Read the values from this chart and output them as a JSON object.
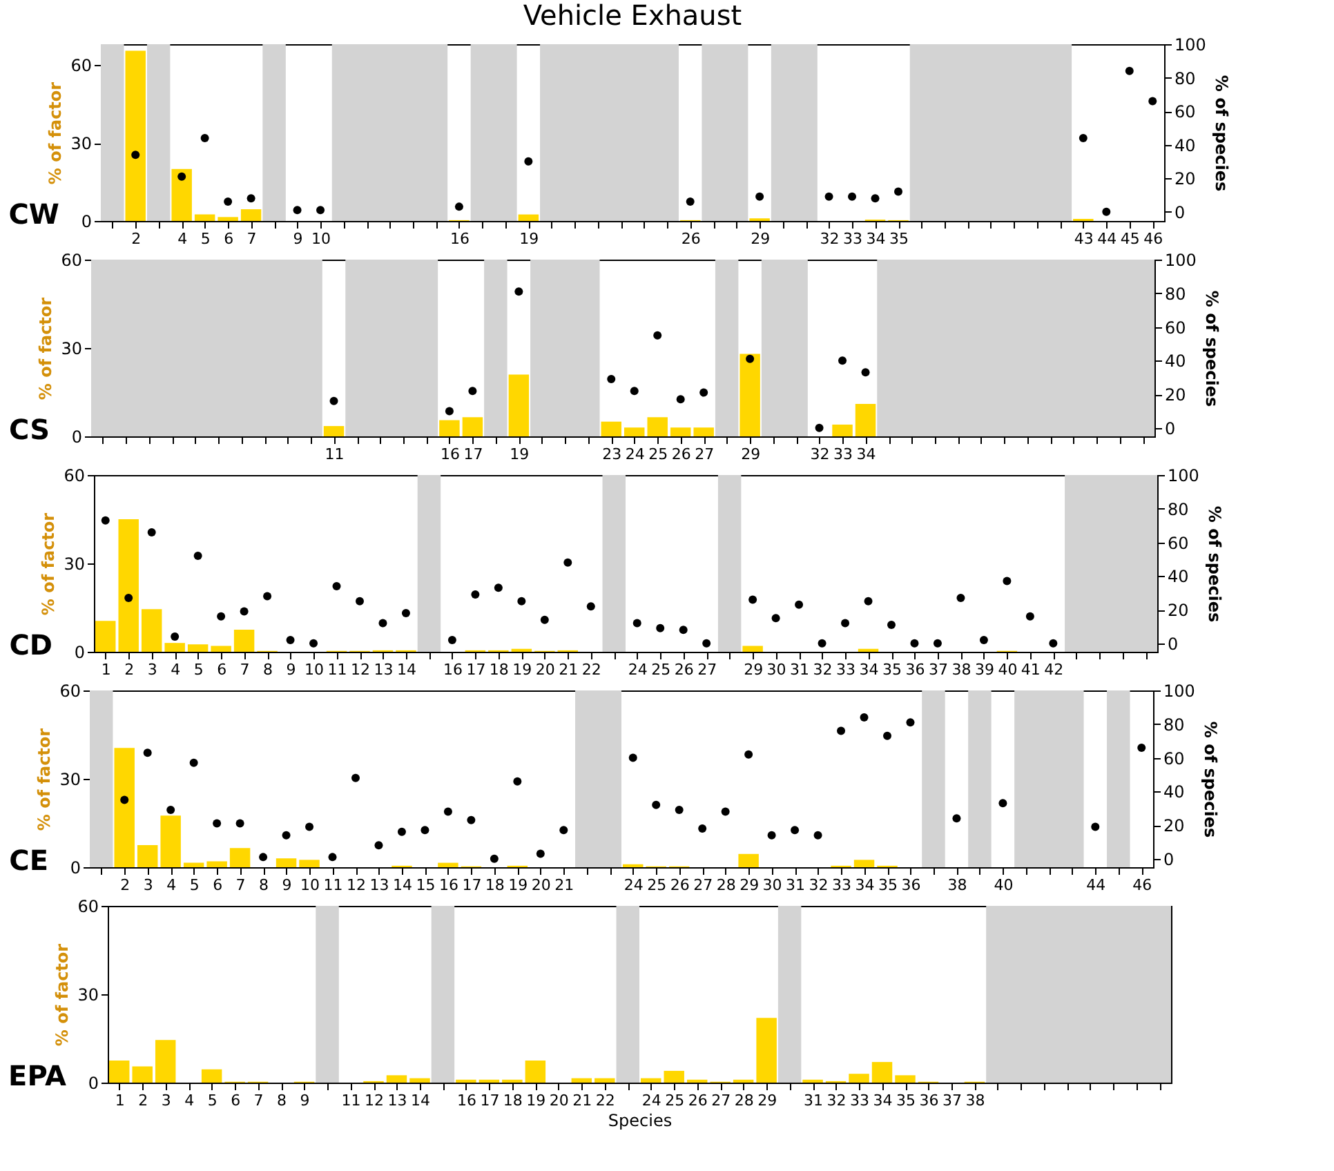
{
  "chart_data": [
    {
      "type": "bar",
      "title": "Vehicle Exhaust",
      "ylabel": "% of factor",
      "y2label": "% of species",
      "annotations": [
        "CW"
      ],
      "marker": "circle",
      "xlim": [
        0.5,
        46.5
      ],
      "ylim": [
        0,
        68
      ],
      "yticks": [
        0,
        30,
        60
      ],
      "y2lim": [
        -5.5,
        100
      ],
      "y2ticks": [
        0,
        20,
        40,
        60,
        80,
        100
      ],
      "xticks": [
        {
          "value": 1,
          "label": null
        },
        2,
        {
          "value": 3,
          "label": null
        },
        4,
        5,
        6,
        7,
        {
          "value": 8,
          "label": null
        },
        9,
        10,
        {
          "value": 11,
          "label": null
        },
        {
          "value": 12,
          "label": null
        },
        {
          "value": 13,
          "label": null
        },
        {
          "value": 14,
          "label": null
        },
        {
          "value": 15,
          "label": null
        },
        16,
        {
          "value": 17,
          "label": null
        },
        {
          "value": 18,
          "label": null
        },
        19,
        {
          "value": 20,
          "label": null
        },
        {
          "value": 21,
          "label": null
        },
        {
          "value": 22,
          "label": null
        },
        {
          "value": 23,
          "label": null
        },
        {
          "value": 24,
          "label": null
        },
        {
          "value": 25,
          "label": null
        },
        26,
        {
          "value": 27,
          "label": null
        },
        {
          "value": 28,
          "label": null
        },
        29,
        {
          "value": 30,
          "label": null
        },
        {
          "value": 31,
          "label": null
        },
        32,
        33,
        34,
        35,
        {
          "value": 36,
          "label": null
        },
        {
          "value": 37,
          "label": null
        },
        {
          "value": 38,
          "label": null
        },
        {
          "value": 39,
          "label": null
        },
        {
          "value": 40,
          "label": null
        },
        {
          "value": 41,
          "label": null
        },
        {
          "value": 42,
          "label": null
        },
        43,
        44,
        45,
        46
      ],
      "bands": [
        {
          "axis": "x",
          "from": 0.5,
          "to": 1.5,
          "color": "#d3d3d3"
        },
        {
          "axis": "x",
          "from": 2.5,
          "to": 3.5,
          "color": "#d3d3d3"
        },
        {
          "axis": "x",
          "from": 7.5,
          "to": 8.5,
          "color": "#d3d3d3"
        },
        {
          "axis": "x",
          "from": 10.5,
          "to": 15.5,
          "color": "#d3d3d3"
        },
        {
          "axis": "x",
          "from": 16.5,
          "to": 18.5,
          "color": "#d3d3d3"
        },
        {
          "axis": "x",
          "from": 19.5,
          "to": 25.5,
          "color": "#d3d3d3"
        },
        {
          "axis": "x",
          "from": 26.5,
          "to": 28.5,
          "color": "#d3d3d3"
        },
        {
          "axis": "x",
          "from": 29.5,
          "to": 31.5,
          "color": "#d3d3d3"
        },
        {
          "axis": "x",
          "from": 35.5,
          "to": 42.5,
          "color": "#d3d3d3"
        }
      ],
      "series": [
        {
          "type": "bar",
          "color": "#ffd700",
          "x": [
            2,
            4,
            5,
            6,
            7,
            9,
            10,
            16,
            19,
            26,
            29,
            32,
            33,
            34,
            35,
            43,
            44,
            45,
            46
          ],
          "values": [
            65.5,
            20,
            2.5,
            1.5,
            4.5,
            0,
            0,
            0.3,
            2.5,
            0.3,
            1,
            0,
            0,
            0.5,
            0.3,
            0.8,
            0,
            0,
            0
          ]
        },
        {
          "type": "scatter",
          "axis": "y2",
          "color": "#000000",
          "x": [
            2,
            4,
            5,
            6,
            7,
            9,
            10,
            16,
            19,
            26,
            29,
            32,
            33,
            34,
            35,
            43,
            44,
            45,
            46
          ],
          "values": [
            34,
            21,
            44,
            6,
            8,
            1,
            1,
            3,
            30,
            6,
            9,
            9,
            9,
            8,
            12,
            44,
            0,
            84,
            66
          ]
        }
      ]
    },
    {
      "type": "bar",
      "ylabel": "% of factor",
      "y2label": "% of species",
      "annotations": [
        "CS"
      ],
      "marker": "circle",
      "xlim": [
        0.5,
        46.5
      ],
      "ylim": [
        0,
        60
      ],
      "yticks": [
        0,
        30,
        60
      ],
      "y2lim": [
        -5,
        100
      ],
      "y2ticks": [
        0,
        20,
        40,
        60,
        80,
        100
      ],
      "xticks": [
        {
          "value": 1,
          "label": null
        },
        {
          "value": 2,
          "label": null
        },
        {
          "value": 3,
          "label": null
        },
        {
          "value": 4,
          "label": null
        },
        {
          "value": 5,
          "label": null
        },
        {
          "value": 6,
          "label": null
        },
        {
          "value": 7,
          "label": null
        },
        {
          "value": 8,
          "label": null
        },
        {
          "value": 9,
          "label": null
        },
        {
          "value": 10,
          "label": null
        },
        11,
        {
          "value": 12,
          "label": null
        },
        {
          "value": 13,
          "label": null
        },
        {
          "value": 14,
          "label": null
        },
        {
          "value": 15,
          "label": null
        },
        16,
        17,
        {
          "value": 18,
          "label": null
        },
        19,
        {
          "value": 20,
          "label": null
        },
        {
          "value": 21,
          "label": null
        },
        {
          "value": 22,
          "label": null
        },
        23,
        24,
        25,
        26,
        27,
        {
          "value": 28,
          "label": null
        },
        29,
        {
          "value": 30,
          "label": null
        },
        {
          "value": 31,
          "label": null
        },
        32,
        33,
        34,
        {
          "value": 35,
          "label": null
        },
        {
          "value": 36,
          "label": null
        },
        {
          "value": 37,
          "label": null
        },
        {
          "value": 38,
          "label": null
        },
        {
          "value": 39,
          "label": null
        },
        {
          "value": 40,
          "label": null
        },
        {
          "value": 41,
          "label": null
        },
        {
          "value": 42,
          "label": null
        },
        {
          "value": 43,
          "label": null
        },
        {
          "value": 44,
          "label": null
        },
        {
          "value": 45,
          "label": null
        },
        {
          "value": 46,
          "label": null
        }
      ],
      "bands": [
        {
          "axis": "x",
          "from": 0.5,
          "to": 10.5,
          "color": "#d3d3d3"
        },
        {
          "axis": "x",
          "from": 11.5,
          "to": 15.5,
          "color": "#d3d3d3"
        },
        {
          "axis": "x",
          "from": 17.5,
          "to": 18.5,
          "color": "#d3d3d3"
        },
        {
          "axis": "x",
          "from": 19.5,
          "to": 22.5,
          "color": "#d3d3d3"
        },
        {
          "axis": "x",
          "from": 27.5,
          "to": 28.5,
          "color": "#d3d3d3"
        },
        {
          "axis": "x",
          "from": 29.5,
          "to": 31.5,
          "color": "#d3d3d3"
        },
        {
          "axis": "x",
          "from": 34.5,
          "to": 46.5,
          "color": "#d3d3d3"
        }
      ],
      "series": [
        {
          "type": "bar",
          "color": "#ffd700",
          "x": [
            11,
            16,
            17,
            19,
            23,
            24,
            25,
            26,
            27,
            29,
            32,
            33,
            34
          ],
          "values": [
            3.5,
            5.5,
            6.5,
            21,
            5,
            3,
            6.5,
            3,
            3,
            28,
            0,
            4,
            11
          ]
        },
        {
          "type": "scatter",
          "axis": "y2",
          "color": "#000000",
          "x": [
            11,
            16,
            17,
            19,
            23,
            24,
            25,
            26,
            27,
            29,
            32,
            33,
            34
          ],
          "values": [
            16,
            10,
            22,
            81,
            29,
            22,
            55,
            17,
            21,
            41,
            0,
            40,
            33
          ]
        }
      ]
    },
    {
      "type": "bar",
      "ylabel": "% of factor",
      "y2label": "% of species",
      "annotations": [
        "CD"
      ],
      "marker": "circle",
      "xlim": [
        0.5,
        46.5
      ],
      "ylim": [
        0,
        60
      ],
      "yticks": [
        0,
        30,
        60
      ],
      "y2lim": [
        -5,
        100
      ],
      "y2ticks": [
        0,
        20,
        40,
        60,
        80,
        100
      ],
      "xticks": [
        1,
        2,
        3,
        4,
        5,
        6,
        7,
        8,
        9,
        10,
        11,
        12,
        13,
        14,
        {
          "value": 15,
          "label": null
        },
        16,
        17,
        18,
        19,
        20,
        21,
        22,
        {
          "value": 23,
          "label": null
        },
        24,
        25,
        26,
        27,
        {
          "value": 28,
          "label": null
        },
        29,
        30,
        31,
        32,
        33,
        34,
        35,
        36,
        37,
        38,
        39,
        40,
        41,
        42,
        {
          "value": 43,
          "label": null
        },
        {
          "value": 44,
          "label": null
        },
        {
          "value": 45,
          "label": null
        },
        {
          "value": 46,
          "label": null
        }
      ],
      "bands": [
        {
          "axis": "x",
          "from": 14.5,
          "to": 15.5,
          "color": "#d3d3d3"
        },
        {
          "axis": "x",
          "from": 22.5,
          "to": 23.5,
          "color": "#d3d3d3"
        },
        {
          "axis": "x",
          "from": 27.5,
          "to": 28.5,
          "color": "#d3d3d3"
        },
        {
          "axis": "x",
          "from": 42.5,
          "to": 46.5,
          "color": "#d3d3d3"
        }
      ],
      "series": [
        {
          "type": "bar",
          "color": "#ffd700",
          "x": [
            1,
            2,
            3,
            4,
            5,
            6,
            7,
            8,
            9,
            10,
            11,
            12,
            13,
            14,
            16,
            17,
            18,
            19,
            20,
            21,
            22,
            24,
            25,
            26,
            27,
            29,
            30,
            31,
            32,
            33,
            34,
            35,
            36,
            37,
            38,
            39,
            40,
            41,
            42
          ],
          "values": [
            10.5,
            45,
            14.5,
            3,
            2.5,
            2,
            7.5,
            0.3,
            0,
            0,
            0.3,
            0.3,
            0.5,
            0.5,
            0,
            0.5,
            0.5,
            1,
            0.3,
            0.5,
            0,
            0,
            0,
            0,
            0,
            2,
            0,
            0,
            0,
            0,
            1,
            0,
            0,
            0,
            0,
            0,
            0.3,
            0,
            0
          ]
        },
        {
          "type": "scatter",
          "axis": "y2",
          "color": "#000000",
          "x": [
            1,
            2,
            3,
            4,
            5,
            6,
            7,
            8,
            9,
            10,
            11,
            12,
            13,
            14,
            16,
            17,
            18,
            19,
            20,
            21,
            22,
            24,
            25,
            26,
            27,
            29,
            30,
            31,
            32,
            33,
            34,
            35,
            36,
            37,
            38,
            39,
            40,
            41,
            42
          ],
          "values": [
            73,
            27,
            66,
            4,
            52,
            16,
            19,
            28,
            2,
            0,
            34,
            25,
            12,
            18,
            2,
            29,
            33,
            25,
            14,
            48,
            22,
            12,
            9,
            8,
            0,
            26,
            15,
            23,
            0,
            12,
            25,
            11,
            0,
            0,
            27,
            2,
            37,
            16,
            0
          ]
        }
      ]
    },
    {
      "type": "bar",
      "ylabel": "% of factor",
      "y2label": "% of species",
      "annotations": [
        "CE"
      ],
      "marker": "circle",
      "xlim": [
        0.5,
        46.5
      ],
      "ylim": [
        0,
        60
      ],
      "yticks": [
        0,
        30,
        60
      ],
      "y2lim": [
        -5,
        100
      ],
      "y2ticks": [
        0,
        20,
        40,
        60,
        80,
        100
      ],
      "xticks": [
        {
          "value": 1,
          "label": null
        },
        2,
        3,
        4,
        5,
        6,
        7,
        8,
        9,
        10,
        11,
        12,
        13,
        14,
        15,
        16,
        17,
        18,
        19,
        20,
        21,
        {
          "value": 22,
          "label": null
        },
        {
          "value": 23,
          "label": null
        },
        24,
        25,
        26,
        27,
        28,
        29,
        30,
        31,
        32,
        33,
        34,
        35,
        36,
        {
          "value": 37,
          "label": null
        },
        38,
        {
          "value": 39,
          "label": null
        },
        40,
        {
          "value": 41,
          "label": null
        },
        {
          "value": 42,
          "label": null
        },
        {
          "value": 43,
          "label": null
        },
        44,
        {
          "value": 45,
          "label": null
        },
        46
      ],
      "bands": [
        {
          "axis": "x",
          "from": 0.5,
          "to": 1.5,
          "color": "#d3d3d3"
        },
        {
          "axis": "x",
          "from": 21.5,
          "to": 23.5,
          "color": "#d3d3d3"
        },
        {
          "axis": "x",
          "from": 36.5,
          "to": 37.5,
          "color": "#d3d3d3"
        },
        {
          "axis": "x",
          "from": 38.5,
          "to": 39.5,
          "color": "#d3d3d3"
        },
        {
          "axis": "x",
          "from": 40.5,
          "to": 43.5,
          "color": "#d3d3d3"
        },
        {
          "axis": "x",
          "from": 44.5,
          "to": 45.5,
          "color": "#d3d3d3"
        }
      ],
      "series": [
        {
          "type": "bar",
          "color": "#ffd700",
          "x": [
            2,
            3,
            4,
            5,
            6,
            7,
            8,
            9,
            10,
            11,
            12,
            13,
            14,
            15,
            16,
            17,
            18,
            19,
            20,
            21,
            24,
            25,
            26,
            27,
            28,
            29,
            30,
            31,
            32,
            33,
            34,
            35,
            36,
            38,
            40,
            44,
            46
          ],
          "values": [
            40.5,
            7.5,
            17.5,
            1.5,
            2,
            6.5,
            0,
            3,
            2.5,
            0,
            0,
            0,
            0.5,
            0,
            1.5,
            0.3,
            0,
            0.5,
            0,
            0,
            1,
            0.3,
            0.3,
            0,
            0,
            4.5,
            0,
            0,
            0,
            0.5,
            2.5,
            0.5,
            0,
            0,
            0,
            0,
            0
          ]
        },
        {
          "type": "scatter",
          "axis": "y2",
          "color": "#000000",
          "x": [
            2,
            3,
            4,
            5,
            6,
            7,
            8,
            9,
            10,
            11,
            12,
            13,
            14,
            15,
            16,
            17,
            18,
            19,
            20,
            21,
            24,
            25,
            26,
            27,
            28,
            29,
            30,
            31,
            32,
            33,
            34,
            35,
            36,
            38,
            40,
            44,
            46
          ],
          "values": [
            35,
            63,
            29,
            57,
            21,
            21,
            1,
            14,
            19,
            1,
            48,
            8,
            16,
            17,
            28,
            23,
            0,
            46,
            3,
            17,
            60,
            32,
            29,
            18,
            28,
            62,
            14,
            17,
            14,
            76,
            84,
            73,
            81,
            24,
            33,
            19,
            66
          ]
        }
      ]
    },
    {
      "type": "bar",
      "ylabel": "% of factor",
      "xlabel": "Species",
      "annotations": [
        "EPA"
      ],
      "xlim": [
        0.5,
        46.5
      ],
      "ylim": [
        0,
        60
      ],
      "yticks": [
        0,
        30,
        60
      ],
      "xticks": [
        1,
        2,
        3,
        4,
        5,
        6,
        7,
        8,
        9,
        {
          "value": 10,
          "label": null
        },
        11,
        12,
        13,
        14,
        {
          "value": 15,
          "label": null
        },
        16,
        17,
        18,
        19,
        20,
        21,
        22,
        {
          "value": 23,
          "label": null
        },
        24,
        25,
        26,
        27,
        28,
        29,
        {
          "value": 30,
          "label": null
        },
        31,
        32,
        33,
        34,
        35,
        36,
        37,
        38,
        {
          "value": 39,
          "label": null
        },
        {
          "value": 40,
          "label": null
        },
        {
          "value": 41,
          "label": null
        },
        {
          "value": 42,
          "label": null
        },
        {
          "value": 43,
          "label": null
        },
        {
          "value": 44,
          "label": null
        },
        {
          "value": 45,
          "label": null
        },
        {
          "value": 46,
          "label": null
        }
      ],
      "bands": [
        {
          "axis": "x",
          "from": 9.5,
          "to": 10.5,
          "color": "#d3d3d3"
        },
        {
          "axis": "x",
          "from": 14.5,
          "to": 15.5,
          "color": "#d3d3d3"
        },
        {
          "axis": "x",
          "from": 22.5,
          "to": 23.5,
          "color": "#d3d3d3"
        },
        {
          "axis": "x",
          "from": 29.5,
          "to": 30.5,
          "color": "#d3d3d3"
        },
        {
          "axis": "x",
          "from": 38.5,
          "to": 46.5,
          "color": "#d3d3d3"
        }
      ],
      "series": [
        {
          "type": "bar",
          "color": "#ffd700",
          "x": [
            1,
            2,
            3,
            4,
            5,
            6,
            7,
            8,
            9,
            11,
            12,
            13,
            14,
            16,
            17,
            18,
            19,
            20,
            21,
            22,
            24,
            25,
            26,
            27,
            28,
            29,
            31,
            32,
            33,
            34,
            35,
            36,
            37,
            38
          ],
          "values": [
            7.5,
            5.5,
            14.5,
            0,
            4.5,
            0.3,
            0.3,
            0,
            0.3,
            0,
            0.5,
            2.5,
            1.5,
            1,
            1,
            1,
            7.5,
            0,
            1.5,
            1.5,
            1.5,
            4,
            1,
            0.3,
            1,
            22,
            1,
            0.5,
            3,
            7,
            2.5,
            0.3,
            0,
            0.3
          ]
        }
      ]
    }
  ]
}
